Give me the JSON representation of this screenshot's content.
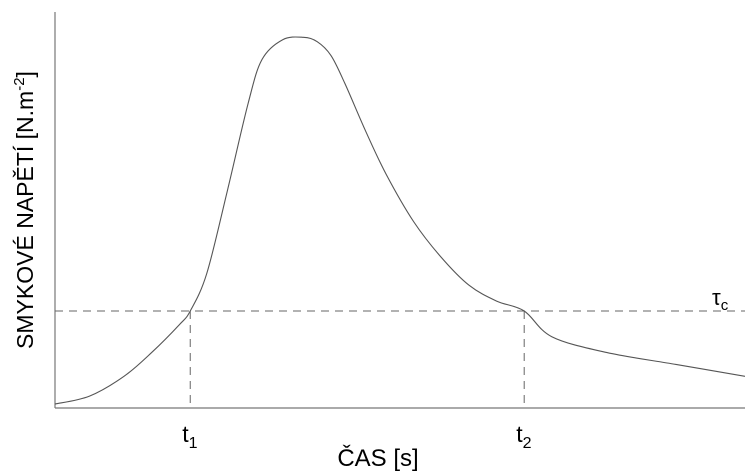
{
  "chart_data": {
    "type": "line",
    "title": "",
    "xlabel": "ČAS [s]",
    "ylabel": "SMYKOVÉ NAPĚTÍ [N.m-2]",
    "ylabel_parts": {
      "base": "SMYKOVÉ NAPĚTÍ [N.m",
      "superscript": "-2",
      "close": "]"
    },
    "grid": false,
    "legend": "none",
    "threshold": {
      "label": "τ",
      "subscript": "c",
      "value": 0.245,
      "style": "dashed"
    },
    "x_ticks": [
      {
        "label": "t",
        "subscript": "1",
        "x": 0.196
      },
      {
        "label": "t",
        "subscript": "2",
        "x": 0.68
      }
    ],
    "xlim": [
      0,
      1
    ],
    "ylim": [
      0,
      1
    ],
    "series": [
      {
        "color": "#555555",
        "x": [
          0.0,
          0.05,
          0.1,
          0.14,
          0.18,
          0.196,
          0.22,
          0.25,
          0.28,
          0.3,
          0.33,
          0.36,
          0.38,
          0.4,
          0.42,
          0.45,
          0.48,
          0.52,
          0.56,
          0.6,
          0.64,
          0.68,
          0.72,
          0.8,
          0.9,
          1.0
        ],
        "y": [
          0.01,
          0.03,
          0.08,
          0.14,
          0.21,
          0.245,
          0.34,
          0.55,
          0.77,
          0.88,
          0.93,
          0.936,
          0.925,
          0.89,
          0.82,
          0.7,
          0.59,
          0.47,
          0.38,
          0.31,
          0.27,
          0.245,
          0.18,
          0.14,
          0.11,
          0.08
        ]
      }
    ]
  }
}
